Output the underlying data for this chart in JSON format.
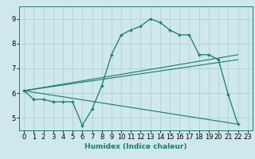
{
  "xlabel": "Humidex (Indice chaleur)",
  "background_color": "#cfe8ec",
  "grid_color": "#a8cdd4",
  "line_color": "#1a7a6e",
  "xlim": [
    -0.5,
    23.5
  ],
  "ylim": [
    4.5,
    9.5
  ],
  "xticks": [
    0,
    1,
    2,
    3,
    4,
    5,
    6,
    7,
    8,
    9,
    10,
    11,
    12,
    13,
    14,
    15,
    16,
    17,
    18,
    19,
    20,
    21,
    22,
    23
  ],
  "yticks": [
    5,
    6,
    7,
    8,
    9
  ],
  "curve1_x": [
    0,
    1,
    2,
    3,
    4,
    5,
    6,
    7,
    8,
    9,
    10,
    11,
    12,
    13,
    14,
    15,
    16,
    17,
    18,
    19,
    20,
    21,
    22
  ],
  "curve1_y": [
    6.1,
    5.75,
    5.75,
    5.65,
    5.65,
    5.65,
    4.7,
    5.35,
    6.3,
    7.55,
    8.35,
    8.55,
    8.7,
    9.0,
    8.85,
    8.55,
    8.35,
    8.35,
    7.55,
    7.55,
    7.35,
    5.95,
    4.75
  ],
  "line1_x": [
    0,
    22
  ],
  "line1_y": [
    6.1,
    7.55
  ],
  "line2_x": [
    0,
    22
  ],
  "line2_y": [
    6.1,
    7.35
  ],
  "line3_x": [
    0,
    22
  ],
  "line3_y": [
    6.1,
    4.75
  ]
}
